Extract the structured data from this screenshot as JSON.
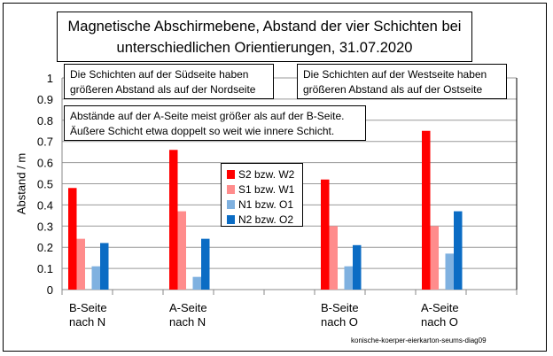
{
  "chart_data": {
    "type": "bar",
    "title": "Magnetische Abschirmebene, Abstand der vier Schichten bei unterschiedlichen Orientierungen, 31.07.2020",
    "title_lines": [
      "Magnetische Abschirmebene, Abstand der vier Schichten bei",
      "unterschiedlichen Orientierungen, 31.07.2020"
    ],
    "ylabel": "Abstand / m",
    "xlabel": "",
    "ylim": [
      0,
      1
    ],
    "yticks": [
      "0",
      "0.1",
      "0.2",
      "0.3",
      "0.4",
      "0.5",
      "0.6",
      "0.7",
      "0.8",
      "0.9",
      "1"
    ],
    "grid": true,
    "legend_position": "center",
    "categories": [
      "B-Seite nach N",
      "",
      "A-Seite nach N",
      "",
      "",
      "B-Seite nach O",
      "",
      "A-Seite nach O",
      ""
    ],
    "category_lines": [
      [
        "B-Seite",
        "nach N"
      ],
      [
        "A-Seite",
        "nach N"
      ],
      [
        "B-Seite",
        "nach O"
      ],
      [
        "A-Seite",
        "nach O"
      ]
    ],
    "series": [
      {
        "name": "S2 bzw. W2",
        "color": "#ff0000",
        "values": [
          0.48,
          null,
          0.66,
          null,
          null,
          0.52,
          null,
          0.75,
          null
        ]
      },
      {
        "name": "S1 bzw. W1",
        "color": "#ff8c8c",
        "values": [
          0.24,
          null,
          0.37,
          null,
          null,
          0.3,
          null,
          0.3,
          null
        ]
      },
      {
        "name": "N1 bzw. O1",
        "color": "#7fb1e0",
        "values": [
          0.11,
          null,
          0.06,
          null,
          null,
          0.11,
          null,
          0.17,
          null
        ]
      },
      {
        "name": "N2 bzw. O2",
        "color": "#0b6cc4",
        "values": [
          0.22,
          null,
          0.24,
          null,
          null,
          0.21,
          null,
          0.37,
          null
        ]
      }
    ],
    "annotations": [
      [
        "Die Schichten auf der Südseite haben",
        "größeren Abstand als auf der Nordseite"
      ],
      [
        "Die Schichten auf der Westseite haben",
        "größeren Abstand als auf der Ostseite"
      ],
      [
        "Abstände auf der A-Seite meist größer als auf der B-Seite.",
        "Äußere Schicht etwa doppelt so weit wie innere Schicht."
      ]
    ]
  },
  "watermark": "konische-koerper-eierkarton-seums-diag09"
}
